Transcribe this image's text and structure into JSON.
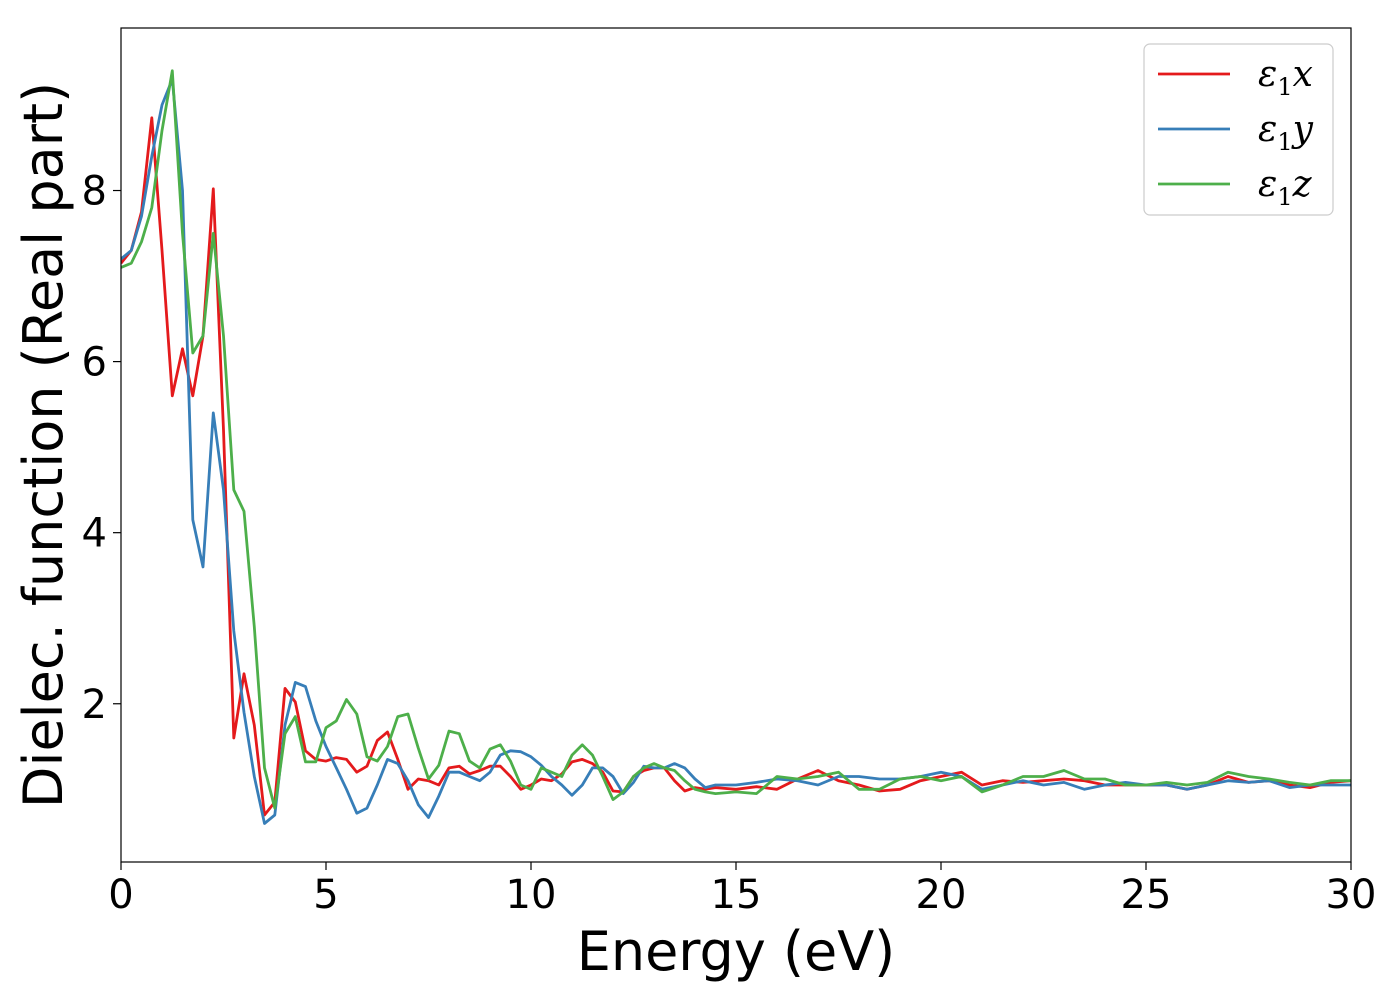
{
  "chart_data": {
    "type": "line",
    "title": "",
    "xlabel": "Energy (eV)",
    "ylabel": "Dielec. function (Real part)",
    "xlim": [
      0,
      30
    ],
    "ylim": [
      0.15,
      9.9
    ],
    "xticks": [
      0,
      5,
      10,
      15,
      20,
      25,
      30
    ],
    "xtick_labels": [
      "0",
      "5",
      "10",
      "15",
      "20",
      "25",
      "30"
    ],
    "yticks": [
      2,
      4,
      6,
      8
    ],
    "ytick_labels": [
      "2",
      "4",
      "6",
      "8"
    ],
    "grid": false,
    "legend": {
      "position": "upper right",
      "entries": [
        {
          "symbol": "ε",
          "sub": "1",
          "var": "x"
        },
        {
          "symbol": "ε",
          "sub": "1",
          "var": "y"
        },
        {
          "symbol": "ε",
          "sub": "1",
          "var": "z"
        }
      ]
    },
    "series": [
      {
        "name": "ε1x",
        "color": "#e41a1c",
        "x": [
          0,
          0.25,
          0.5,
          0.75,
          1.0,
          1.25,
          1.5,
          1.75,
          2.0,
          2.25,
          2.5,
          2.75,
          3.0,
          3.25,
          3.5,
          3.75,
          4.0,
          4.25,
          4.5,
          4.75,
          5.0,
          5.25,
          5.5,
          5.75,
          6.0,
          6.25,
          6.5,
          6.75,
          7.0,
          7.25,
          7.5,
          7.75,
          8.0,
          8.25,
          8.5,
          8.75,
          9.0,
          9.25,
          9.5,
          9.75,
          10.0,
          10.25,
          10.5,
          10.75,
          11.0,
          11.25,
          11.5,
          11.75,
          12.0,
          12.25,
          12.5,
          12.75,
          13.0,
          13.25,
          13.5,
          13.75,
          14.0,
          14.25,
          14.5,
          15.0,
          15.5,
          16.0,
          16.5,
          17.0,
          17.5,
          18.0,
          18.5,
          19.0,
          19.5,
          20.0,
          20.5,
          21.0,
          21.5,
          22.0,
          22.5,
          23.0,
          23.5,
          24.0,
          24.5,
          25.0,
          25.5,
          26.0,
          26.5,
          27.0,
          27.5,
          28.0,
          28.5,
          29.0,
          29.5,
          30.0
        ],
        "y": [
          7.15,
          7.3,
          7.75,
          8.85,
          7.3,
          5.6,
          6.15,
          5.6,
          6.3,
          8.02,
          5.2,
          1.6,
          2.35,
          1.75,
          0.7,
          0.85,
          2.18,
          2.02,
          1.45,
          1.35,
          1.33,
          1.37,
          1.35,
          1.2,
          1.27,
          1.57,
          1.67,
          1.35,
          1.0,
          1.12,
          1.1,
          1.05,
          1.25,
          1.27,
          1.18,
          1.22,
          1.27,
          1.27,
          1.15,
          1.0,
          1.05,
          1.12,
          1.1,
          1.18,
          1.32,
          1.35,
          1.3,
          1.2,
          0.98,
          0.97,
          1.15,
          1.22,
          1.25,
          1.25,
          1.1,
          0.98,
          1.02,
          1.0,
          1.02,
          1.0,
          1.03,
          1.0,
          1.12,
          1.22,
          1.1,
          1.05,
          0.98,
          1.0,
          1.1,
          1.15,
          1.2,
          1.05,
          1.1,
          1.08,
          1.1,
          1.12,
          1.1,
          1.05,
          1.05,
          1.05,
          1.05,
          1.0,
          1.05,
          1.15,
          1.08,
          1.1,
          1.05,
          1.02,
          1.08,
          1.1
        ]
      },
      {
        "name": "ε1y",
        "color": "#377eb8",
        "x": [
          0,
          0.25,
          0.5,
          0.75,
          1.0,
          1.25,
          1.5,
          1.75,
          2.0,
          2.25,
          2.5,
          2.75,
          3.0,
          3.25,
          3.5,
          3.75,
          4.0,
          4.25,
          4.5,
          4.75,
          5.0,
          5.25,
          5.5,
          5.75,
          6.0,
          6.25,
          6.5,
          6.75,
          7.0,
          7.25,
          7.5,
          7.75,
          8.0,
          8.25,
          8.5,
          8.75,
          9.0,
          9.25,
          9.5,
          9.75,
          10.0,
          10.25,
          10.5,
          10.75,
          11.0,
          11.25,
          11.5,
          11.75,
          12.0,
          12.25,
          12.5,
          12.75,
          13.0,
          13.25,
          13.5,
          13.75,
          14.0,
          14.25,
          14.5,
          15.0,
          15.5,
          16.0,
          16.5,
          17.0,
          17.5,
          18.0,
          18.5,
          19.0,
          19.5,
          20.0,
          20.5,
          21.0,
          21.5,
          22.0,
          22.5,
          23.0,
          23.5,
          24.0,
          24.5,
          25.0,
          25.5,
          26.0,
          26.5,
          27.0,
          27.5,
          28.0,
          28.5,
          29.0,
          29.5,
          30.0
        ],
        "y": [
          7.2,
          7.3,
          7.7,
          8.4,
          9.0,
          9.3,
          8.0,
          4.15,
          3.6,
          5.4,
          4.5,
          2.85,
          1.9,
          1.15,
          0.6,
          0.7,
          1.75,
          2.25,
          2.2,
          1.8,
          1.5,
          1.25,
          1.0,
          0.72,
          0.78,
          1.05,
          1.35,
          1.3,
          1.1,
          0.82,
          0.67,
          0.92,
          1.2,
          1.2,
          1.15,
          1.1,
          1.2,
          1.4,
          1.45,
          1.44,
          1.38,
          1.28,
          1.15,
          1.05,
          0.93,
          1.05,
          1.25,
          1.25,
          1.15,
          0.95,
          1.08,
          1.27,
          1.25,
          1.25,
          1.3,
          1.25,
          1.12,
          1.02,
          1.05,
          1.05,
          1.08,
          1.12,
          1.1,
          1.05,
          1.15,
          1.15,
          1.12,
          1.12,
          1.15,
          1.2,
          1.15,
          1.0,
          1.05,
          1.1,
          1.05,
          1.08,
          1.0,
          1.05,
          1.08,
          1.05,
          1.05,
          1.0,
          1.05,
          1.1,
          1.08,
          1.1,
          1.02,
          1.05,
          1.05,
          1.05
        ]
      },
      {
        "name": "ε1z",
        "color": "#4daf4a",
        "x": [
          0,
          0.25,
          0.5,
          0.75,
          1.0,
          1.25,
          1.5,
          1.75,
          2.0,
          2.25,
          2.5,
          2.75,
          3.0,
          3.25,
          3.5,
          3.75,
          4.0,
          4.25,
          4.5,
          4.75,
          5.0,
          5.25,
          5.5,
          5.75,
          6.0,
          6.25,
          6.5,
          6.75,
          7.0,
          7.25,
          7.5,
          7.75,
          8.0,
          8.25,
          8.5,
          8.75,
          9.0,
          9.25,
          9.5,
          9.75,
          10.0,
          10.25,
          10.5,
          10.75,
          11.0,
          11.25,
          11.5,
          11.75,
          12.0,
          12.25,
          12.5,
          12.75,
          13.0,
          13.25,
          13.5,
          13.75,
          14.0,
          14.25,
          14.5,
          15.0,
          15.5,
          16.0,
          16.5,
          17.0,
          17.5,
          18.0,
          18.5,
          19.0,
          19.5,
          20.0,
          20.5,
          21.0,
          21.5,
          22.0,
          22.5,
          23.0,
          23.5,
          24.0,
          24.5,
          25.0,
          25.5,
          26.0,
          26.5,
          27.0,
          27.5,
          28.0,
          28.5,
          29.0,
          29.5,
          30.0
        ],
        "y": [
          7.1,
          7.15,
          7.4,
          7.8,
          8.7,
          9.4,
          7.5,
          6.1,
          6.3,
          7.5,
          6.3,
          4.5,
          4.25,
          2.9,
          1.25,
          0.78,
          1.65,
          1.85,
          1.32,
          1.32,
          1.72,
          1.8,
          2.05,
          1.88,
          1.38,
          1.33,
          1.5,
          1.85,
          1.88,
          1.48,
          1.12,
          1.28,
          1.68,
          1.65,
          1.33,
          1.25,
          1.47,
          1.52,
          1.33,
          1.05,
          1.0,
          1.25,
          1.2,
          1.15,
          1.4,
          1.52,
          1.4,
          1.15,
          0.88,
          0.97,
          1.15,
          1.25,
          1.3,
          1.25,
          1.22,
          1.1,
          1.0,
          0.97,
          0.95,
          0.97,
          0.95,
          1.15,
          1.12,
          1.15,
          1.2,
          1.0,
          1.0,
          1.12,
          1.15,
          1.1,
          1.15,
          0.97,
          1.05,
          1.15,
          1.15,
          1.22,
          1.12,
          1.12,
          1.05,
          1.05,
          1.08,
          1.05,
          1.08,
          1.2,
          1.15,
          1.12,
          1.08,
          1.05,
          1.1,
          1.1
        ]
      }
    ]
  }
}
